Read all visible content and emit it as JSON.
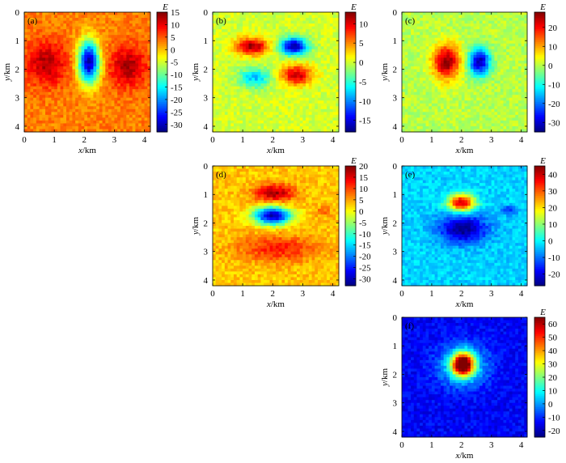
{
  "figure": {
    "x_label": "x/km",
    "y_label": "y/km",
    "colorbar_label": "E",
    "x_ticks": [
      0,
      1,
      2,
      3,
      4
    ],
    "y_ticks": [
      0,
      1,
      2,
      3,
      4
    ]
  },
  "chart_data": [
    {
      "type": "heatmap",
      "panel_label": "(a)",
      "xlabel": "x/km",
      "ylabel": "y/km",
      "xlim": [
        0,
        4.2
      ],
      "ylim": [
        4.2,
        0
      ],
      "colorbar": {
        "label": "E",
        "range": [
          -33,
          15
        ],
        "ticks": [
          15,
          10,
          5,
          0,
          -5,
          -10,
          -15,
          -20,
          -25,
          -30
        ]
      },
      "features": [
        {
          "x": 2.15,
          "y": 1.75,
          "rx": 0.35,
          "ry": 0.75,
          "value": -31
        },
        {
          "x": 0.75,
          "y": 1.8,
          "rx": 0.65,
          "ry": 0.75,
          "value": 13
        },
        {
          "x": 3.45,
          "y": 1.9,
          "rx": 0.6,
          "ry": 0.7,
          "value": 13
        }
      ],
      "background": 3
    },
    {
      "type": "heatmap",
      "panel_label": "(b)",
      "xlabel": "x/km",
      "ylabel": "y/km",
      "xlim": [
        0,
        4.2
      ],
      "ylim": [
        4.2,
        0
      ],
      "colorbar": {
        "label": "E",
        "range": [
          -18,
          13
        ],
        "ticks": [
          10,
          5,
          0,
          -5,
          -10,
          -15
        ]
      },
      "features": [
        {
          "x": 1.3,
          "y": 1.2,
          "rx": 0.55,
          "ry": 0.3,
          "value": 12
        },
        {
          "x": 2.7,
          "y": 1.2,
          "rx": 0.45,
          "ry": 0.3,
          "value": -17
        },
        {
          "x": 2.8,
          "y": 2.2,
          "rx": 0.5,
          "ry": 0.35,
          "value": 11
        },
        {
          "x": 1.4,
          "y": 2.3,
          "rx": 0.5,
          "ry": 0.35,
          "value": -8
        }
      ],
      "background": 0
    },
    {
      "type": "heatmap",
      "panel_label": "(c)",
      "xlabel": "x/km",
      "ylabel": "y/km",
      "xlim": [
        0,
        4.2
      ],
      "ylim": [
        4.2,
        0
      ],
      "colorbar": {
        "label": "E",
        "range": [
          -35,
          28
        ],
        "ticks": [
          20,
          10,
          0,
          -10,
          -20,
          -30
        ]
      },
      "features": [
        {
          "x": 1.5,
          "y": 1.75,
          "rx": 0.45,
          "ry": 0.6,
          "value": 27
        },
        {
          "x": 2.6,
          "y": 1.75,
          "rx": 0.35,
          "ry": 0.45,
          "value": -33
        }
      ],
      "background": 0
    },
    {
      "type": "heatmap",
      "panel_label": "(d)",
      "xlabel": "x/km",
      "ylabel": "y/km",
      "xlim": [
        0,
        4.2
      ],
      "ylim": [
        4.2,
        0
      ],
      "colorbar": {
        "label": "E",
        "range": [
          -33,
          20
        ],
        "ticks": [
          20,
          15,
          10,
          5,
          0,
          -5,
          -10,
          -15,
          -20,
          -25,
          -30
        ]
      },
      "features": [
        {
          "x": 2.05,
          "y": 0.95,
          "rx": 0.65,
          "ry": 0.3,
          "value": 18
        },
        {
          "x": 2.0,
          "y": 1.75,
          "rx": 0.6,
          "ry": 0.3,
          "value": -32
        },
        {
          "x": 2.2,
          "y": 2.9,
          "rx": 1.3,
          "ry": 0.45,
          "value": 12
        },
        {
          "x": 3.7,
          "y": 1.6,
          "rx": 0.25,
          "ry": 0.2,
          "value": 8
        }
      ],
      "background": 3
    },
    {
      "type": "heatmap",
      "panel_label": "(e)",
      "xlabel": "x/km",
      "ylabel": "y/km",
      "xlim": [
        0,
        4.2
      ],
      "ylim": [
        4.2,
        0
      ],
      "colorbar": {
        "label": "E",
        "range": [
          -27,
          45
        ],
        "ticks": [
          40,
          30,
          20,
          10,
          0,
          -10,
          -20
        ]
      },
      "features": [
        {
          "x": 2.0,
          "y": 1.3,
          "rx": 0.45,
          "ry": 0.3,
          "value": 42
        },
        {
          "x": 2.05,
          "y": 2.2,
          "rx": 0.8,
          "ry": 0.5,
          "value": -26
        },
        {
          "x": 3.6,
          "y": 1.55,
          "rx": 0.25,
          "ry": 0.15,
          "value": -15
        }
      ],
      "background": -3
    },
    {
      "type": "heatmap",
      "panel_label": "(f)",
      "xlabel": "x/km",
      "ylabel": "y/km",
      "xlim": [
        0,
        4.2
      ],
      "ylim": [
        4.2,
        0
      ],
      "colorbar": {
        "label": "E",
        "range": [
          -25,
          65
        ],
        "ticks": [
          60,
          50,
          40,
          30,
          20,
          10,
          0,
          -10,
          -20
        ]
      },
      "features": [
        {
          "x": 2.05,
          "y": 1.65,
          "rx": 0.35,
          "ry": 0.4,
          "value": 64
        },
        {
          "x": 2.05,
          "y": 1.7,
          "rx": 0.8,
          "ry": 0.7,
          "value": 10
        }
      ],
      "background": -14
    }
  ]
}
